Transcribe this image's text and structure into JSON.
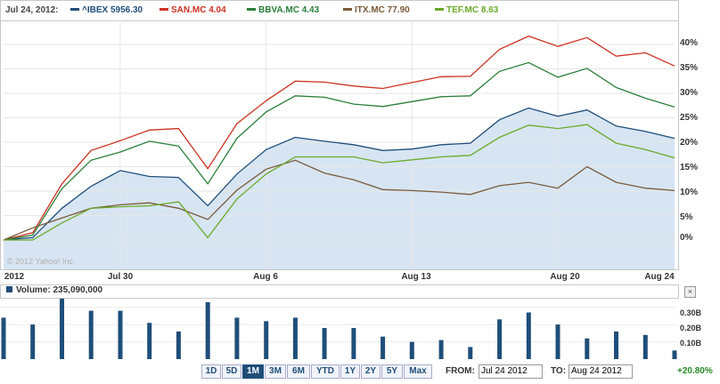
{
  "legend": {
    "date": "Jul 24, 2012:",
    "items": [
      {
        "label": "^IBEX 5956.30",
        "color": "#1f4e79"
      },
      {
        "label": "SAN.MC 4.04",
        "color": "#cc3322"
      },
      {
        "label": "BBVA.MC 4.43",
        "color": "#2a7f3a"
      },
      {
        "label": "ITX.MC 77.90",
        "color": "#7a5a3a"
      },
      {
        "label": "TEF.MC 8.63",
        "color": "#6aaa2a"
      }
    ]
  },
  "copyright": "© 2012 Yahoo! Inc.",
  "volume": {
    "label": "Volume: 235,090,000",
    "close": "×",
    "ticks": [
      "0.30B",
      "0.20B",
      "0.10B"
    ]
  },
  "toolbar": {
    "ranges": [
      "1D",
      "5D",
      "1M",
      "3M",
      "6M",
      "YTD",
      "1Y",
      "2Y",
      "5Y",
      "Max"
    ],
    "active": "1M",
    "from_label": "FROM:",
    "from_value": "Jul 24 2012",
    "to_label": "TO:",
    "to_value": "Aug 24 2012",
    "change": "+20.80%"
  },
  "chart_data": {
    "type": "line",
    "x_tick_labels": [
      "2012",
      "Jul 30",
      "Aug 6",
      "Aug 13",
      "Aug 20",
      "Aug 24"
    ],
    "y_tick_labels": [
      "40%",
      "35%",
      "30%",
      "25%",
      "20%",
      "15%",
      "10%",
      "5%",
      "0%"
    ],
    "y_unit": "%",
    "ylim": [
      -6,
      42
    ],
    "x": [
      "Jul 24",
      "Jul 25",
      "Jul 26",
      "Jul 27",
      "Jul 30",
      "Jul 31",
      "Aug 1",
      "Aug 2",
      "Aug 3",
      "Aug 6",
      "Aug 7",
      "Aug 8",
      "Aug 9",
      "Aug 10",
      "Aug 13",
      "Aug 14",
      "Aug 15",
      "Aug 16",
      "Aug 17",
      "Aug 20",
      "Aug 21",
      "Aug 22",
      "Aug 23",
      "Aug 24"
    ],
    "series": [
      {
        "name": "^IBEX",
        "color": "#1f4e79",
        "area": true,
        "values": [
          0,
          0.5,
          6.5,
          11,
          14.2,
          13,
          12.8,
          7,
          13.5,
          18.5,
          21,
          20.2,
          19.5,
          18.3,
          18.6,
          19.5,
          19.8,
          24.6,
          27,
          25.3,
          26.6,
          23.3,
          22.2,
          20.8
        ]
      },
      {
        "name": "SAN.MC",
        "color": "#cc3322",
        "values": [
          0,
          1.5,
          11.5,
          18.3,
          20.3,
          22.5,
          22.8,
          14.6,
          23.8,
          28.5,
          32.5,
          32.3,
          31.5,
          31,
          32.2,
          33.4,
          33.5,
          39,
          41.7,
          39.6,
          41.4,
          37.6,
          38.3,
          35.6
        ]
      },
      {
        "name": "BBVA.MC",
        "color": "#2a7f3a",
        "values": [
          0,
          1,
          10.5,
          16.3,
          18,
          20.2,
          19.2,
          11.5,
          20.8,
          26.2,
          29.5,
          29.2,
          27.8,
          27.3,
          28.3,
          29.3,
          29.5,
          34.5,
          36.3,
          33.3,
          35.1,
          31.2,
          29,
          27.2
        ]
      },
      {
        "name": "ITX.MC",
        "color": "#7a5a3a",
        "values": [
          0,
          2.5,
          4.5,
          6.5,
          7.2,
          7.6,
          6.5,
          4.2,
          10.2,
          14.5,
          16.3,
          13.7,
          12.3,
          10.3,
          10.1,
          9.8,
          9.3,
          11.1,
          11.8,
          10.6,
          15,
          11.8,
          10.6,
          10.1
        ]
      },
      {
        "name": "TEF.MC",
        "color": "#6aaa2a",
        "values": [
          0,
          0,
          3.5,
          6.5,
          6.8,
          7,
          7.8,
          0.5,
          8.4,
          13.5,
          17,
          17,
          17,
          15.8,
          16.4,
          17,
          17.3,
          21,
          23.5,
          22.8,
          23.6,
          19.8,
          18.5,
          16.8
        ]
      }
    ]
  },
  "volume_data": {
    "type": "bar",
    "ylim": [
      0,
      0.35
    ],
    "unit": "B",
    "values": [
      0.24,
      0.2,
      0.35,
      0.28,
      0.28,
      0.21,
      0.16,
      0.33,
      0.24,
      0.22,
      0.24,
      0.18,
      0.18,
      0.13,
      0.1,
      0.11,
      0.07,
      0.23,
      0.27,
      0.2,
      0.12,
      0.16,
      0.14,
      0.05
    ]
  }
}
